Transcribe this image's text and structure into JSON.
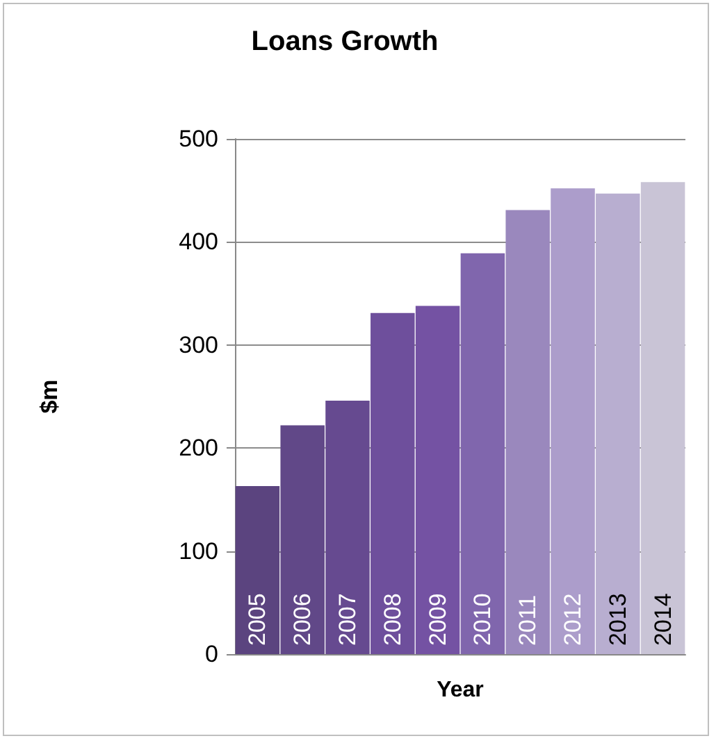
{
  "chart_data": {
    "type": "bar",
    "title": "Loans Growth",
    "xlabel": "Year",
    "ylabel": "$m",
    "categories": [
      "2005",
      "2006",
      "2007",
      "2008",
      "2009",
      "2010",
      "2011",
      "2012",
      "2013",
      "2014"
    ],
    "values": [
      163,
      222,
      246,
      331,
      338,
      389,
      431,
      452,
      447,
      458
    ],
    "colors": [
      "#5b447f",
      "#614888",
      "#664a90",
      "#6e4f9c",
      "#7452a3",
      "#8066ad",
      "#9a88bd",
      "#ac9dcb",
      "#b8aed0",
      "#c9c4d6"
    ],
    "ylim": [
      0,
      500
    ],
    "yticks": [
      0,
      100,
      200,
      300,
      400,
      500
    ],
    "grid": "y"
  }
}
